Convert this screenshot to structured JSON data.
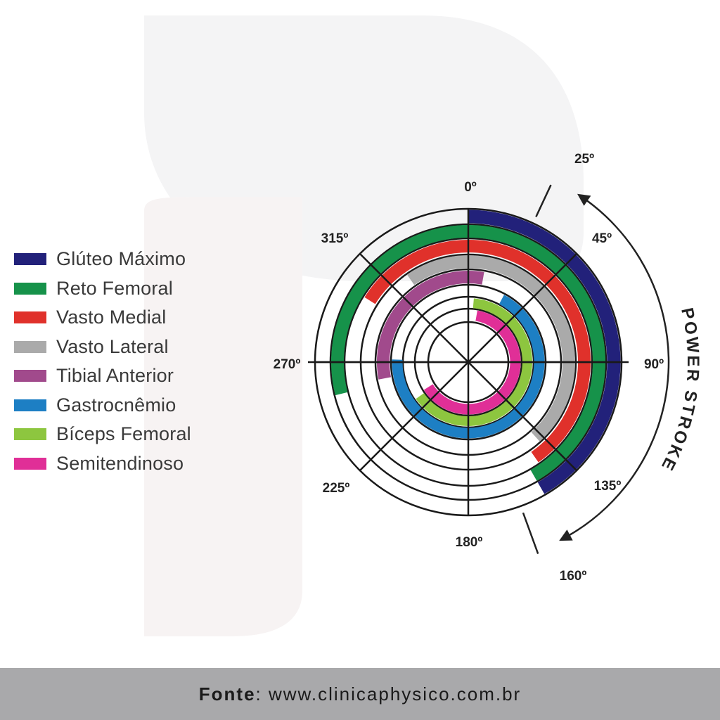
{
  "legend": [
    {
      "name": "Glúteo Máximo",
      "color": "#22217a"
    },
    {
      "name": "Reto Femoral",
      "color": "#16924a"
    },
    {
      "name": "Vasto Medial",
      "color": "#e0312b"
    },
    {
      "name": "Vasto Lateral",
      "color": "#aaaaaa"
    },
    {
      "name": "Tibial Anterior",
      "color": "#a14a8c"
    },
    {
      "name": "Gastrocnêmio",
      "color": "#1d7fc4"
    },
    {
      "name": "Bíceps Femoral",
      "color": "#8dc63f"
    },
    {
      "name": "Semitendinoso",
      "color": "#e02f97"
    }
  ],
  "activations": [
    {
      "muscle": "Glúteo Máximo",
      "start_deg": 0,
      "end_deg": 150
    },
    {
      "muscle": "Reto Femoral",
      "start_deg": 256,
      "end_deg": 150
    },
    {
      "muscle": "Vasto Medial",
      "start_deg": 302,
      "end_deg": 145
    },
    {
      "muscle": "Vasto Lateral",
      "start_deg": 325,
      "end_deg": 138
    },
    {
      "muscle": "Tibial Anterior",
      "start_deg": 259,
      "end_deg": 10
    },
    {
      "muscle": "Gastrocnêmio",
      "start_deg": 28,
      "end_deg": 272
    },
    {
      "muscle": "Bíceps Femoral",
      "start_deg": 5,
      "end_deg": 235
    },
    {
      "muscle": "Semitendinoso",
      "start_deg": 10,
      "end_deg": 238
    }
  ],
  "angle_labels": [
    "0º",
    "45º",
    "90º",
    "135º",
    "180º",
    "225º",
    "270º",
    "315º"
  ],
  "stroke": {
    "start_label": "25º",
    "end_label": "160º",
    "text": "POWER STROKE"
  },
  "footer": {
    "label": "Fonte",
    "url": "www.clinicaphysico.com.br"
  }
}
